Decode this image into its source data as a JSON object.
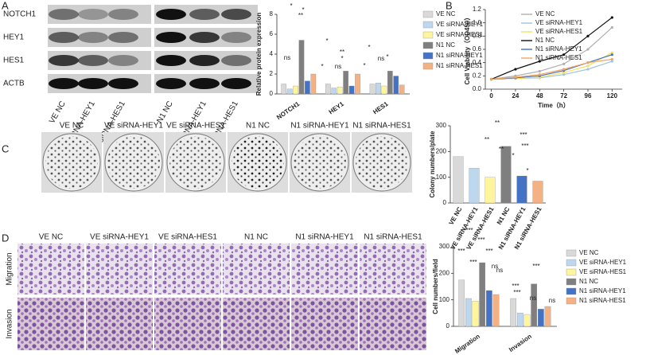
{
  "panel_labels": [
    "A",
    "B",
    "C",
    "D"
  ],
  "blot": {
    "proteins": [
      "NOTCH1",
      "HEY1",
      "HES1",
      "ACTB"
    ],
    "samples": [
      "VE NC",
      "VE siRNA-HEY1",
      "VE siRNA-HES1",
      "N1 NC",
      "N1 siRNA-HEY1",
      "N1 siRNA-HES1"
    ]
  },
  "colony": {
    "samples": [
      "VE NC",
      "VE siRNA-HEY1",
      "VE siRNA-HES1",
      "N1 NC",
      "N1 siRNA-HEY1",
      "N1 siRNA-HES1"
    ]
  },
  "transwell": {
    "samples": [
      "VE NC",
      "VE siRNA-HEY1",
      "VE siRNA-HES1",
      "N1 NC",
      "N1 siRNA-HEY1",
      "N1 siRNA-HES1"
    ],
    "rows": [
      "Migration",
      "Invasion"
    ]
  },
  "chart_data": [
    {
      "type": "bar",
      "ylabel": "Relative protein expression",
      "categories": [
        "NOTCH1",
        "HEY1",
        "HES1"
      ],
      "ylim": [
        0,
        8
      ],
      "yticks": [
        0,
        2,
        4,
        6,
        8
      ],
      "series": [
        {
          "name": "VE NC",
          "color": "#d9d9d9",
          "values": [
            1.0,
            1.0,
            1.0
          ]
        },
        {
          "name": "VE siRNA-HEY1",
          "color": "#bdd7ee",
          "values": [
            0.5,
            0.6,
            1.1
          ]
        },
        {
          "name": "VE siRNA-HES1",
          "color": "#fff59d",
          "values": [
            0.8,
            0.7,
            0.8
          ]
        },
        {
          "name": "N1 NC",
          "color": "#7f7f7f",
          "values": [
            5.4,
            2.3,
            2.3
          ]
        },
        {
          "name": "N1 siRNA-HEY1",
          "color": "#4472c4",
          "values": [
            1.3,
            0.8,
            1.8
          ]
        },
        {
          "name": "N1 siRNA-HES1",
          "color": "#f4b183",
          "values": [
            2.0,
            2.0,
            0.9
          ]
        }
      ],
      "annotations": [
        "*",
        "ns",
        "*",
        "**",
        "*",
        "*",
        "**",
        "*",
        "ns",
        "*",
        "*",
        "ns",
        "*"
      ]
    },
    {
      "type": "line",
      "ylabel": "Cell Viability（OD450）",
      "xlabel": "Time（h）",
      "x": [
        0,
        24,
        48,
        72,
        96,
        120
      ],
      "xlim": [
        -6,
        130
      ],
      "xticks": [
        0,
        24,
        48,
        72,
        96,
        120
      ],
      "ylim": [
        0,
        1.2
      ],
      "yticks": [
        {
          "value": 0,
          "label": "0.0"
        },
        0.2,
        0.4,
        0.6,
        0.8,
        {
          "value": 1,
          "label": "1.0"
        },
        1.2
      ],
      "legend": "upper left",
      "series": [
        {
          "name": "VE NC",
          "color": "#b0b0b0",
          "values": [
            0.15,
            0.2,
            0.27,
            0.38,
            0.6,
            0.93
          ]
        },
        {
          "name": "VE siRNA-HEY1",
          "color": "#9dc3e6",
          "values": [
            0.15,
            0.16,
            0.17,
            0.22,
            0.3,
            0.42
          ]
        },
        {
          "name": "VE siRNA-HES1",
          "color": "#f2e35a",
          "values": [
            0.15,
            0.16,
            0.18,
            0.25,
            0.35,
            0.55
          ]
        },
        {
          "name": "N1 NC",
          "color": "#111111",
          "values": [
            0.15,
            0.3,
            0.42,
            0.52,
            0.8,
            1.08
          ]
        },
        {
          "name": "N1 siRNA-HEY1",
          "color": "#4472c4",
          "values": [
            0.15,
            0.17,
            0.2,
            0.28,
            0.4,
            0.52
          ]
        },
        {
          "name": "N1 siRNA-HES1",
          "color": "#f4a460",
          "values": [
            0.15,
            0.18,
            0.22,
            0.3,
            0.4,
            0.45
          ]
        }
      ]
    },
    {
      "type": "bar",
      "ylabel": "Colony numbers/plate",
      "categories": [
        "VE NC",
        "VE siRNA-HEY1",
        "VE siRNA-HES1",
        "N1 NC",
        "N1 siRNA-HEY1",
        "N1 siRNA-HES1"
      ],
      "values": [
        180,
        135,
        100,
        220,
        105,
        85
      ],
      "colors": [
        "#d9d9d9",
        "#bdd7ee",
        "#fff59d",
        "#7f7f7f",
        "#4472c4",
        "#f4b183"
      ],
      "ylim": [
        0,
        300
      ],
      "yticks": [
        0,
        100,
        200,
        300
      ],
      "annotations": [
        "**",
        "**",
        "**",
        "*",
        "***",
        "***",
        "*"
      ]
    },
    {
      "type": "bar",
      "ylabel": "Cell numbers/field",
      "categories": [
        "Migration",
        "Invasion"
      ],
      "ylim": [
        0,
        300
      ],
      "yticks": [
        0,
        100,
        200,
        300
      ],
      "series": [
        {
          "name": "VE NC",
          "color": "#d9d9d9",
          "values": [
            175,
            105
          ]
        },
        {
          "name": "VE siRNA-HEY1",
          "color": "#bdd7ee",
          "values": [
            105,
            50
          ]
        },
        {
          "name": "VE siRNA-HES1",
          "color": "#fff59d",
          "values": [
            95,
            45
          ]
        },
        {
          "name": "N1 NC",
          "color": "#7f7f7f",
          "values": [
            240,
            160
          ]
        },
        {
          "name": "N1 siRNA-HEY1",
          "color": "#4472c4",
          "values": [
            135,
            65
          ]
        },
        {
          "name": "N1 siRNA-HES1",
          "color": "#f4b183",
          "values": [
            120,
            75
          ]
        }
      ],
      "annotations": [
        "***",
        "***",
        "***",
        "***",
        "***",
        "ns",
        "ns",
        "***",
        "***",
        "***",
        "ns",
        "ns"
      ]
    }
  ]
}
